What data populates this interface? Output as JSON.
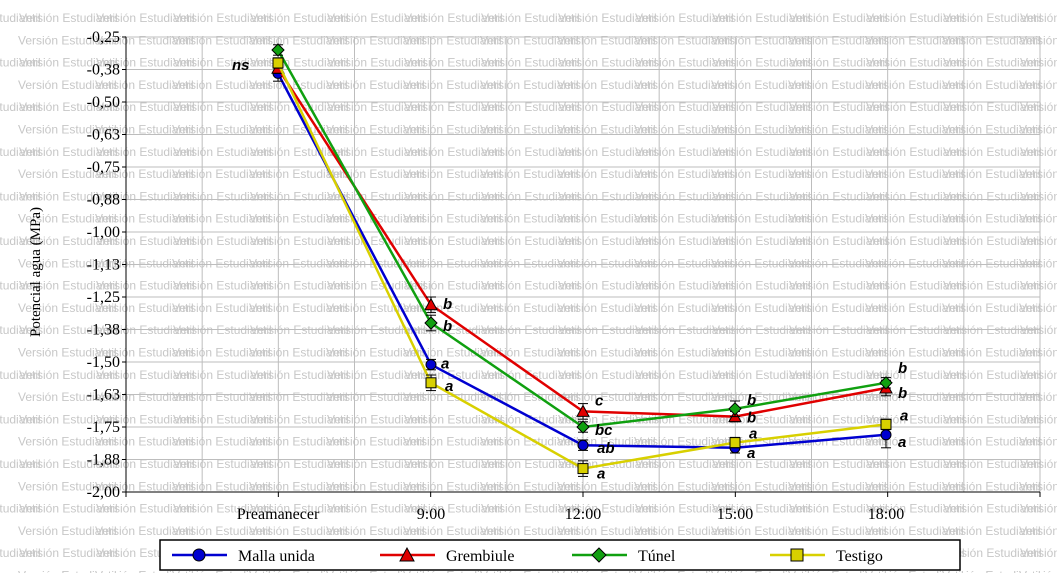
{
  "watermark": "Versión Estudiantil",
  "chart_data": {
    "type": "line",
    "title": "",
    "xlabel": "",
    "ylabel": "Potencial agua (MPa)",
    "categories": [
      "Preamanecer",
      "9:00",
      "12:00",
      "15:00",
      "18:00"
    ],
    "ylim": [
      -2.0,
      -0.25
    ],
    "yticks": [
      "-0,25",
      "-0,38",
      "-0,50",
      "-0,63",
      "-0,75",
      "-0,88",
      "-1,00",
      "-1,13",
      "-1,25",
      "-1,38",
      "-1,50",
      "-1,63",
      "-1,75",
      "-1,88",
      "-2,00"
    ],
    "grid": true,
    "legend_position": "bottom",
    "series": [
      {
        "name": "Malla unida",
        "color": "#0000d0",
        "marker": "circle",
        "values": [
          -0.39,
          -1.51,
          -1.82,
          -1.83,
          -1.78
        ],
        "errors": [
          0.03,
          0.02,
          0.02,
          0.02,
          0.05
        ],
        "labels": [
          "",
          "a",
          "ab",
          "a",
          "a"
        ]
      },
      {
        "name": "Grembiule",
        "color": "#e00000",
        "marker": "triangle",
        "values": [
          -0.37,
          -1.28,
          -1.69,
          -1.71,
          -1.6
        ],
        "errors": [
          0.02,
          0.03,
          0.03,
          0.02,
          0.03
        ],
        "labels": [
          "",
          "b",
          "c",
          "b",
          "b"
        ]
      },
      {
        "name": "Túnel",
        "color": "#10a010",
        "marker": "diamond",
        "values": [
          -0.3,
          -1.35,
          -1.75,
          -1.68,
          -1.58
        ],
        "errors": [
          0.02,
          0.03,
          0.02,
          0.03,
          0.02
        ],
        "labels": [
          "",
          "b",
          "bc",
          "b",
          "b"
        ]
      },
      {
        "name": "Testigo",
        "color": "#d8d000",
        "marker": "square",
        "values": [
          -0.35,
          -1.58,
          -1.91,
          -1.81,
          -1.74
        ],
        "errors": [
          0.02,
          0.03,
          0.03,
          0.02,
          0.02
        ],
        "labels": [
          "ns",
          "a",
          "a",
          "a",
          "a"
        ]
      }
    ]
  }
}
